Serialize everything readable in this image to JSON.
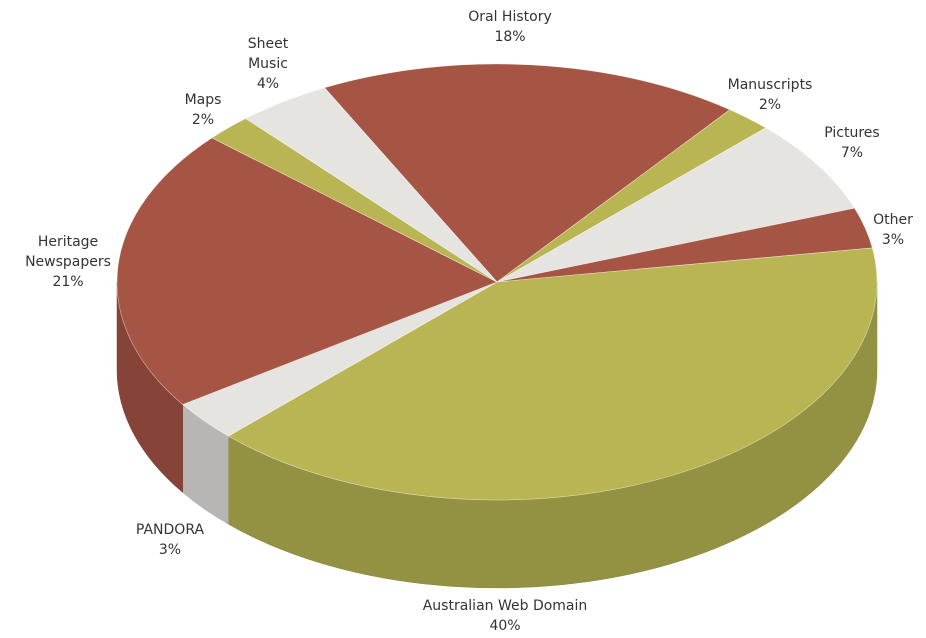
{
  "chart_data": {
    "type": "pie3d",
    "categories": [
      "Oral History",
      "Manuscripts",
      "Pictures",
      "Other",
      "Australian Web Domain",
      "PANDORA",
      "Heritage Newspapers",
      "Maps",
      "Sheet Music"
    ],
    "values": [
      18,
      2,
      7,
      3,
      40,
      3,
      21,
      2,
      4
    ],
    "value_labels": [
      "18%",
      "2%",
      "7%",
      "3%",
      "40%",
      "3%",
      "21%",
      "2%",
      "4%"
    ],
    "colors": [
      "#a65545",
      "#b8b552",
      "#e6e4e1",
      "#a65545",
      "#b8b552",
      "#e6e4e1",
      "#a65545",
      "#b8b552",
      "#e6e4e1"
    ]
  }
}
